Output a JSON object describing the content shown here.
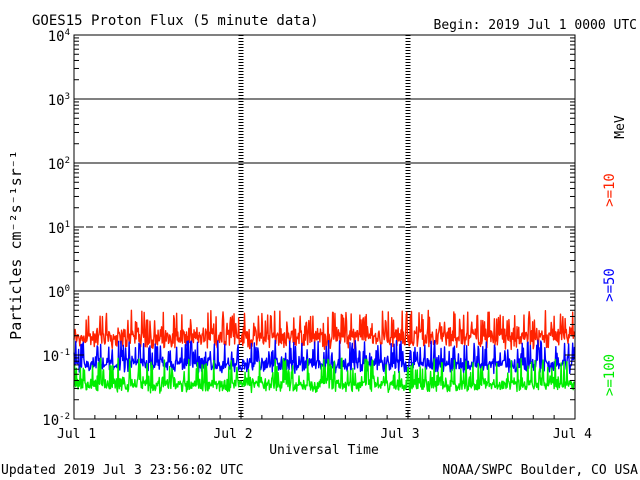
{
  "header": {
    "title": "GOES15 Proton Flux (5 minute data)",
    "begin": "Begin: 2019 Jul 1 0000 UTC"
  },
  "footer": {
    "updated": "Updated 2019 Jul  3 23:56:02 UTC",
    "credit": "NOAA/SWPC Boulder, CO USA"
  },
  "legend": {
    "unit": "MeV",
    "items": [
      {
        "label": ">=10",
        "color": "#ff2200"
      },
      {
        "label": ">=50",
        "color": "#0000ff"
      },
      {
        "label": ">=100",
        "color": "#00ee00"
      }
    ]
  },
  "chart_data": {
    "type": "line",
    "title": "GOES15 Proton Flux (5 minute data)",
    "xlabel": "Universal Time",
    "ylabel": "Particles cm⁻²s⁻¹sr⁻¹",
    "y_scale": "log",
    "ylim": [
      0.01,
      10000
    ],
    "y_ticks": [
      {
        "value": 0.01,
        "base": "10",
        "exp": "-2"
      },
      {
        "value": 0.1,
        "base": "10",
        "exp": "-1"
      },
      {
        "value": 1,
        "base": "10",
        "exp": "0"
      },
      {
        "value": 10,
        "base": "10",
        "exp": "1"
      },
      {
        "value": 100,
        "base": "10",
        "exp": "2"
      },
      {
        "value": 1000,
        "base": "10",
        "exp": "3"
      },
      {
        "value": 10000,
        "base": "10",
        "exp": "4"
      }
    ],
    "x_ticks": [
      "Jul 1",
      "Jul 2",
      "Jul 3",
      "Jul 4"
    ],
    "xlim": [
      "2019-07-01",
      "2019-07-04"
    ],
    "reference_lines": [
      {
        "value": 10,
        "style": "dashed"
      },
      {
        "value": 1,
        "style": "solid"
      },
      {
        "value": 100,
        "style": "solid"
      },
      {
        "value": 1000,
        "style": "solid"
      }
    ],
    "series": [
      {
        "name": ">=10 MeV",
        "color": "#ff2200",
        "typical_range": [
          0.12,
          0.5
        ],
        "typical": 0.22
      },
      {
        "name": ">=50 MeV",
        "color": "#0000ff",
        "typical_range": [
          0.05,
          0.17
        ],
        "typical": 0.075
      },
      {
        "name": ">=100 MeV",
        "color": "#00ee00",
        "typical_range": [
          0.025,
          0.09
        ],
        "typical": 0.035
      }
    ]
  }
}
